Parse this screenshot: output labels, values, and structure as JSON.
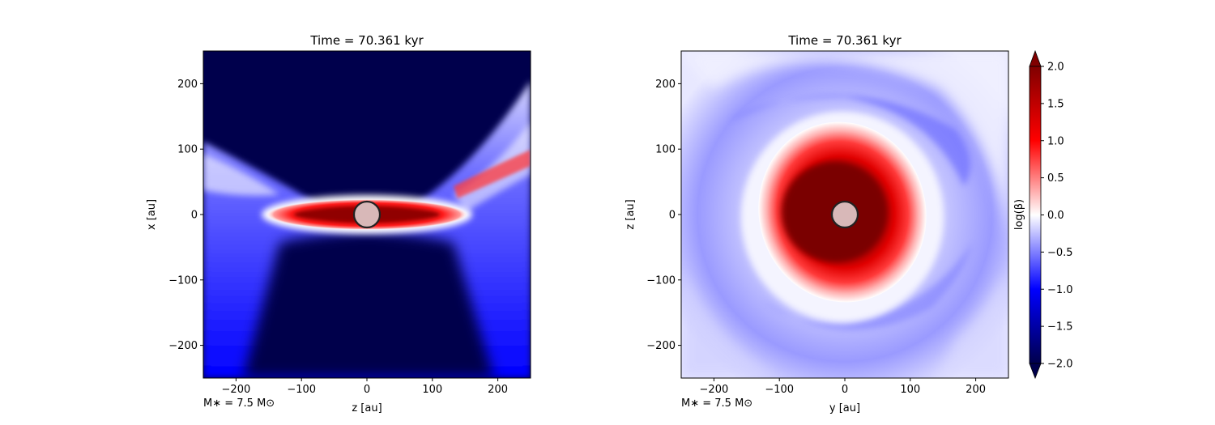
{
  "chart_data": [
    {
      "type": "heatmap",
      "title": "Time = 70.361 kyr",
      "xlabel": "z [au]",
      "ylabel": "x [au]",
      "xlim": [
        -250,
        250
      ],
      "ylim": [
        -250,
        250
      ],
      "xticks": [
        -200,
        -100,
        0,
        100,
        200
      ],
      "yticks": [
        -200,
        -100,
        0,
        100,
        200
      ],
      "xtick_labels": [
        "−200",
        "−100",
        "0",
        "100",
        "200"
      ],
      "ytick_labels": [
        "−200",
        "−100",
        "0",
        "100",
        "200"
      ],
      "annotation": "M∗ = 7.5 M⊙",
      "view": "edge-on",
      "star_radius": 20
    },
    {
      "type": "heatmap",
      "title": "Time = 70.361 kyr",
      "xlabel": "y [au]",
      "ylabel": "z [au]",
      "xlim": [
        -250,
        250
      ],
      "ylim": [
        -250,
        250
      ],
      "xticks": [
        -200,
        -100,
        0,
        100,
        200
      ],
      "yticks": [
        -200,
        -100,
        0,
        100,
        200
      ],
      "xtick_labels": [
        "−200",
        "−100",
        "0",
        "100",
        "200"
      ],
      "ytick_labels": [
        "−200",
        "−100",
        "0",
        "100",
        "200"
      ],
      "annotation": "M∗ = 7.5 M⊙",
      "view": "face-on",
      "star_radius": 20
    }
  ],
  "colorbar": {
    "label": "log(β)",
    "range": [
      -2.0,
      2.0
    ],
    "ticks": [
      2.0,
      1.5,
      1.0,
      0.5,
      0.0,
      -0.5,
      -1.0,
      -1.5,
      -2.0
    ],
    "tick_labels": [
      "2.0",
      "1.5",
      "1.0",
      "0.5",
      "0.0",
      "−0.5",
      "−1.0",
      "−1.5",
      "−2.0"
    ],
    "colormap": "seismic",
    "extend": "both",
    "colors": {
      "low": "#00004c",
      "mid": "#ffffff",
      "high": "#800000"
    }
  }
}
